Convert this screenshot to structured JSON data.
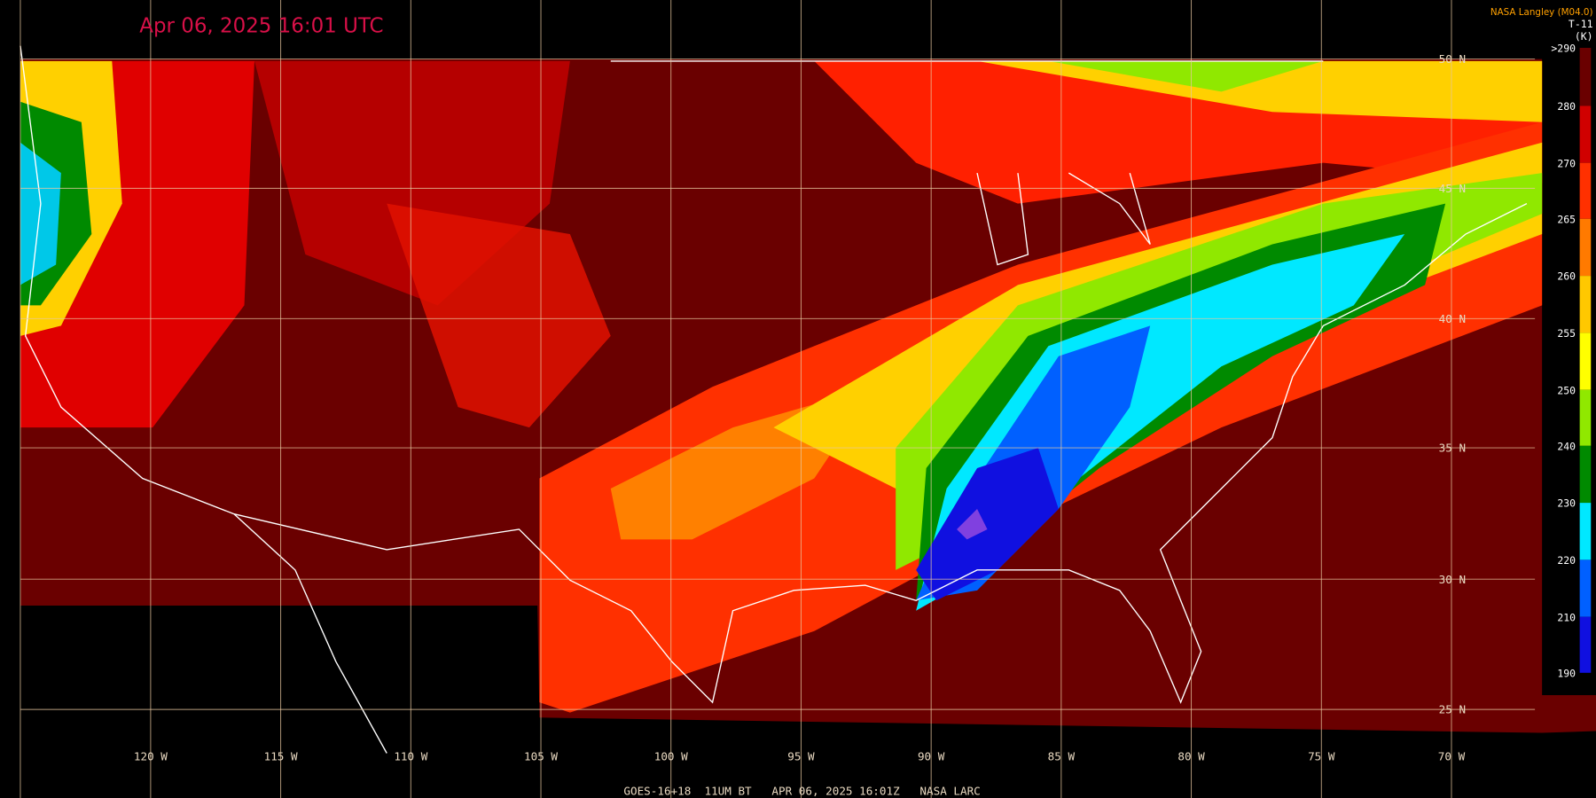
{
  "header": {
    "title": "Apr 06, 2025 16:01 UTC",
    "credit": "NASA Langley (M04.0)",
    "channel": "T-11",
    "unit": "(K)"
  },
  "colorbar": {
    "labels": [
      ">290",
      "280",
      "270",
      "265",
      "260",
      "255",
      "250",
      "240",
      "230",
      "220",
      "210",
      "190"
    ],
    "colors": [
      "#6a0000",
      "#d00000",
      "#ff3000",
      "#ff7a00",
      "#ffc800",
      "#ffff00",
      "#90e800",
      "#008a00",
      "#00e8ff",
      "#0060ff",
      "#1010e0",
      "#8040e0"
    ]
  },
  "latitudes": [
    "50 N",
    "45 N",
    "40 N",
    "35 N",
    "30 N",
    "25 N"
  ],
  "longitudes": [
    "120 W",
    "115 W",
    "110 W",
    "105 W",
    "100 W",
    "95 W",
    "90 W",
    "85 W",
    "80 W",
    "75 W",
    "70 W"
  ],
  "footer": "GOES-16+18  11UM BT   APR 06, 2025 16:01Z   NASA LARC"
}
